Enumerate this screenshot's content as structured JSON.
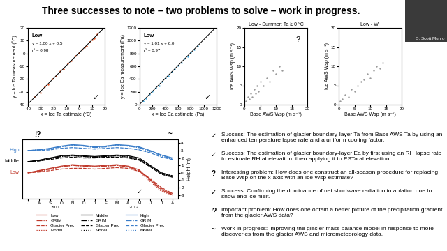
{
  "title": "Three successes to note – two problems to solve – work in progress.",
  "presenter": "D. Scott Munro",
  "chart_data": [
    {
      "type": "scatter",
      "title": "Low",
      "equation": "y = 1.00 x + 0.5",
      "r2_label": "r² = 0.98",
      "mark": "✓",
      "fit": {
        "slope": 1.0,
        "intercept": 0.5,
        "r2": 0.98
      },
      "x_label": "x = Ice Ta estimate (°C)",
      "y_label": "y = Ice Ta measurement (°C)",
      "x": [
        -35,
        -30,
        -27,
        -24,
        -21,
        -18,
        -15,
        -12,
        -9,
        -6,
        -3,
        0,
        2,
        4,
        6,
        8,
        10,
        12,
        14
      ],
      "values": [
        -34,
        -30.5,
        -26,
        -24,
        -20,
        -17.5,
        -14,
        -12,
        -8,
        -5.5,
        -2,
        0.5,
        3,
        4.5,
        6,
        9,
        10.5,
        12,
        15
      ],
      "color": "#e8501e",
      "marker": "o",
      "xlim": [
        -40,
        20
      ],
      "ylim": [
        -40,
        20
      ],
      "xticks": [
        -40,
        -30,
        -20,
        -10,
        0,
        10,
        20
      ],
      "yticks": [
        -40,
        -30,
        -20,
        -10,
        0,
        10,
        20
      ]
    },
    {
      "type": "scatter",
      "title": "Low",
      "equation": "y = 1.01 x + 6.0",
      "r2_label": "r² = 0.97",
      "mark": "✓",
      "fit": {
        "slope": 1.01,
        "intercept": 6.0,
        "r2": 0.97
      },
      "x_label": "x = Ice Ea estimate (Pa)",
      "y_label": "y = Ice Ea measurement (Pa)",
      "x": [
        50,
        100,
        150,
        200,
        250,
        300,
        350,
        400,
        450,
        500,
        550,
        600,
        650,
        700,
        750,
        800,
        850,
        900
      ],
      "values": [
        60,
        95,
        160,
        205,
        260,
        300,
        365,
        410,
        450,
        515,
        560,
        610,
        660,
        715,
        750,
        815,
        860,
        915
      ],
      "color": "#3fa9e0",
      "marker": "o",
      "xlim": [
        0,
        1200
      ],
      "ylim": [
        0,
        1200
      ],
      "xticks": [
        0,
        200,
        400,
        600,
        800,
        1000,
        1200
      ],
      "yticks": [
        0,
        200,
        400,
        600,
        800,
        1000,
        1200
      ]
    },
    {
      "type": "scatter",
      "title": "Low - Summer: Ta ≥ 0 °C",
      "mark": "?",
      "x_label": "Base AWS Wsp (m s⁻¹)",
      "y_label": "Ice AWS Wsp (m s⁻¹)",
      "x": [
        0.5,
        1,
        1.5,
        2,
        2.5,
        3,
        3.5,
        4,
        4.5,
        5,
        6,
        7,
        8,
        9,
        10,
        11,
        12
      ],
      "values": [
        1,
        2,
        1.5,
        3,
        2,
        4,
        3,
        5,
        3.5,
        6,
        5,
        7,
        6,
        9,
        8,
        10,
        9
      ],
      "color": "#999999",
      "marker": "o",
      "xlim": [
        0,
        20
      ],
      "ylim": [
        0,
        20
      ],
      "xticks": [
        0,
        5,
        10,
        15,
        20
      ],
      "yticks": [
        0,
        5,
        10,
        15,
        20
      ]
    },
    {
      "type": "scatter",
      "title": "Low - Wi",
      "x_label": "Base AWS Wsp (m s⁻¹)",
      "y_label": "Ice AWS Wsp (m s⁻¹)",
      "x": [
        0.5,
        1,
        2,
        3,
        4,
        5,
        6,
        7,
        8,
        9,
        10,
        11,
        12,
        13,
        14
      ],
      "values": [
        1,
        1.5,
        2.5,
        2,
        4,
        3.5,
        5,
        6,
        6.5,
        8,
        7,
        9,
        10,
        9.5,
        11
      ],
      "color": "#999999",
      "marker": "o",
      "xlim": [
        0,
        20
      ],
      "ylim": [
        0,
        20
      ],
      "xticks": [
        0,
        5,
        10,
        15,
        20
      ],
      "yticks": [
        0,
        5,
        10,
        15,
        20
      ]
    },
    {
      "type": "line",
      "y_label": "Height (m)",
      "categories": [
        "J",
        "A",
        "S",
        "O",
        "N",
        "D",
        "J",
        "F",
        "M",
        "A",
        "M",
        "J",
        "J",
        "A"
      ],
      "years": [
        {
          "label": "2011",
          "start": 0,
          "end": 5
        },
        {
          "label": "2012",
          "start": 6,
          "end": 13
        }
      ],
      "side_labels": [
        "High",
        "Middle",
        "Low"
      ],
      "marks": [
        "!?",
        "~",
        "✓"
      ],
      "legend": "bottom",
      "ylim": [
        -3.5,
        4.5
      ],
      "yticks": [
        -3,
        -2,
        -1,
        0,
        1,
        2,
        3,
        4
      ],
      "series": [
        {
          "name": "Low",
          "color": "#c0392b",
          "line_style": "solid",
          "values": [
            0.0,
            0.3,
            0.6,
            0.9,
            1.1,
            1.0,
            0.9,
            1.0,
            1.1,
            0.9,
            0.4,
            -1.0,
            -2.3,
            -3.0
          ]
        },
        {
          "name": "GRIM",
          "color": "#c0392b",
          "line_style": "dashdot",
          "values": [
            0.0,
            0.2,
            0.5,
            0.8,
            1.0,
            0.9,
            0.8,
            0.9,
            1.0,
            0.8,
            0.3,
            -0.8,
            -2.0,
            -2.8
          ]
        },
        {
          "name": "Glacier Prec",
          "color": "#c0392b",
          "line_style": "dashed",
          "values": [
            0.0,
            0.1,
            0.3,
            0.5,
            0.6,
            0.6,
            0.5,
            0.6,
            0.7,
            0.6,
            0.2,
            -0.9,
            -2.1,
            -2.9
          ]
        },
        {
          "name": "Model",
          "color": "#c0392b",
          "line_style": "dotted",
          "values": [
            0.0,
            0.3,
            0.5,
            0.8,
            1.0,
            0.9,
            0.8,
            0.9,
            1.0,
            0.8,
            0.2,
            -1.2,
            -2.5,
            -3.0
          ]
        },
        {
          "name": "Middle",
          "color": "#000000",
          "line_style": "solid",
          "values": [
            1.5,
            1.7,
            2.0,
            2.3,
            2.4,
            2.3,
            2.2,
            2.3,
            2.4,
            2.3,
            2.0,
            1.0,
            0.0,
            -0.5
          ]
        },
        {
          "name": "GRIM",
          "color": "#000000",
          "line_style": "dashdot",
          "values": [
            1.5,
            1.6,
            1.9,
            2.2,
            2.3,
            2.2,
            2.1,
            2.2,
            2.3,
            2.2,
            1.8,
            0.9,
            0.0,
            -0.4
          ]
        },
        {
          "name": "Glacier Prec",
          "color": "#000000",
          "line_style": "dashed",
          "values": [
            1.5,
            1.6,
            1.8,
            2.0,
            2.1,
            2.0,
            2.0,
            2.1,
            2.1,
            2.0,
            1.7,
            0.8,
            -0.2,
            -0.6
          ]
        },
        {
          "name": "Model",
          "color": "#000000",
          "line_style": "dotted",
          "values": [
            1.5,
            1.7,
            2.0,
            2.2,
            2.3,
            2.2,
            2.1,
            2.2,
            2.3,
            2.1,
            1.8,
            0.8,
            -0.1,
            -0.6
          ]
        },
        {
          "name": "High",
          "color": "#3a7dc9",
          "line_style": "solid",
          "values": [
            3.0,
            3.1,
            3.3,
            3.6,
            3.8,
            3.7,
            3.5,
            3.6,
            3.8,
            3.7,
            3.5,
            3.0,
            2.4,
            2.0
          ]
        },
        {
          "name": "GRIM",
          "color": "#3a7dc9",
          "line_style": "dashdot",
          "values": [
            3.0,
            3.1,
            3.2,
            3.5,
            3.7,
            3.6,
            3.4,
            3.5,
            3.7,
            3.6,
            3.4,
            2.9,
            2.3,
            1.9
          ]
        },
        {
          "name": "Glacier Prec",
          "color": "#3a7dc9",
          "line_style": "dashed",
          "values": [
            3.0,
            3.0,
            3.1,
            3.3,
            3.4,
            3.3,
            3.2,
            3.3,
            3.4,
            3.3,
            3.1,
            2.7,
            2.1,
            1.8
          ]
        },
        {
          "name": "Model",
          "color": "#3a7dc9",
          "line_style": "dotted",
          "values": [
            3.0,
            3.1,
            3.3,
            3.5,
            3.7,
            3.6,
            3.5,
            3.6,
            3.7,
            3.6,
            3.4,
            2.8,
            2.2,
            1.8
          ]
        }
      ]
    }
  ],
  "bullets": [
    {
      "mark": "✓",
      "text": "Success: The estimation of glacier boundary-layer Ta from Base AWS Ta by using an enhanced temperature lapse rate and a uniform cooling factor."
    },
    {
      "mark": "✓",
      "text": "Success: The estimation of glacier boundary-layer Ea by first using an RH lapse rate to estimate RH at elevation, then applying it to ESTa at elevation."
    },
    {
      "mark": "?",
      "text": "Interesting problem: How does one construct an all-season procedure for replacing Base Wsp on the x-axis with an Ice Wsp estimate?"
    },
    {
      "mark": "✓",
      "text": "Success: Confirming the dominance of net shortwave radiation in ablation due to snow and ice melt."
    },
    {
      "mark": "!?",
      "text": "Important problem: How does one obtain a better picture of the precipitation gradient from the glacier AWS data?"
    },
    {
      "mark": "~",
      "text": "Work in progress: improving the glacier mass balance model in response to more discoveries from the glacier AWS and micrometeorology data."
    }
  ]
}
